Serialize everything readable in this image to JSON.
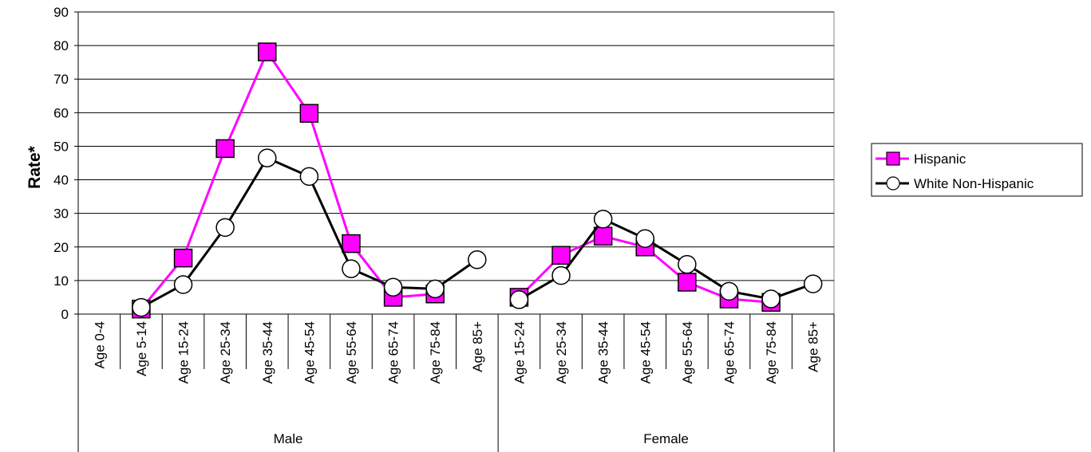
{
  "chart_data": {
    "type": "line",
    "ylabel": "Rate*",
    "ylim": [
      0,
      90
    ],
    "yticks": [
      0,
      10,
      20,
      30,
      40,
      50,
      60,
      70,
      80,
      90
    ],
    "grid": true,
    "legend_position": "right",
    "groups": [
      {
        "name": "Male",
        "categories": [
          "Age 0-4",
          "Age 5-14",
          "Age 15-24",
          "Age 25-34",
          "Age 35-44",
          "Age 45-54",
          "Age 55-64",
          "Age 65-74",
          "Age 75-84",
          "Age 85+"
        ]
      },
      {
        "name": "Female",
        "categories": [
          "Age 15-24",
          "Age 25-34",
          "Age 35-44",
          "Age 45-54",
          "Age 55-64",
          "Age 65-74",
          "Age 75-84",
          "Age 85+"
        ]
      }
    ],
    "series": [
      {
        "name": "Hispanic",
        "color": "#ff00ff",
        "marker": "square",
        "values": [
          null,
          1.5,
          16.7,
          49.3,
          78.1,
          59.8,
          21.0,
          5.0,
          6.0,
          null,
          5.0,
          17.5,
          23.2,
          20.0,
          9.5,
          4.5,
          3.5,
          null
        ]
      },
      {
        "name": "White Non-Hispanic",
        "color": "#000000",
        "marker": "circle",
        "values": [
          null,
          2.0,
          8.8,
          25.8,
          46.5,
          41.0,
          13.5,
          8.0,
          7.5,
          16.2,
          4.3,
          11.5,
          28.3,
          22.5,
          14.8,
          6.8,
          4.5,
          9.0
        ]
      }
    ]
  }
}
